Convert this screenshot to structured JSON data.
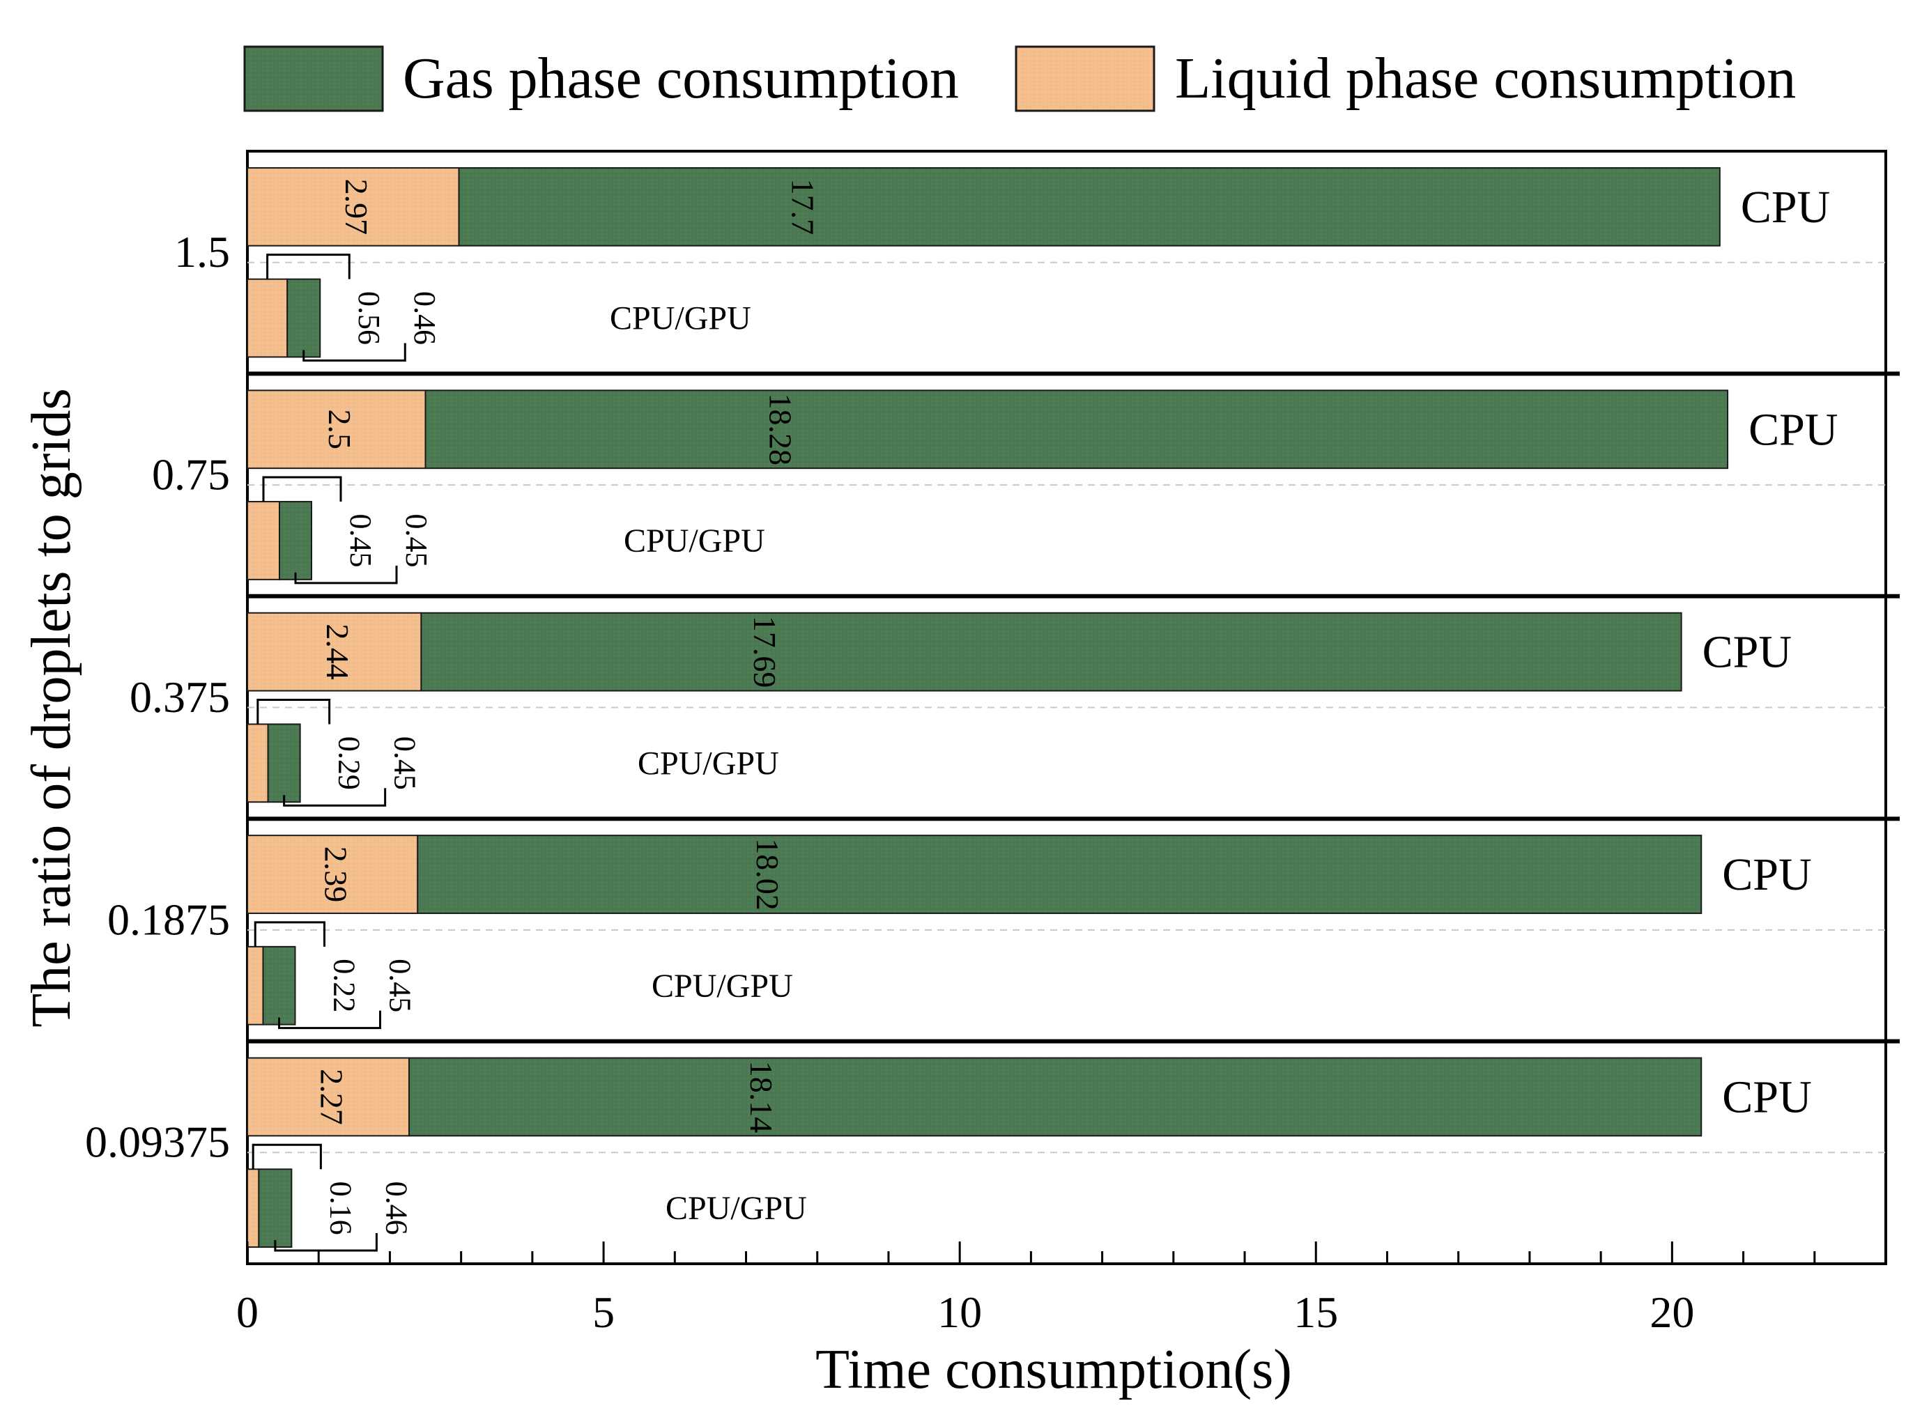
{
  "chart_data": {
    "type": "bar",
    "orientation": "horizontal",
    "stacked": true,
    "title": "",
    "xlabel": "Time consumption(s)",
    "ylabel": "The ratio of droplets to grids",
    "xlim": [
      0,
      23
    ],
    "x_ticks": [
      "0",
      "5",
      "10",
      "15",
      "20"
    ],
    "legend": {
      "position": "top",
      "entries": [
        "Gas phase consumption",
        "Liquid phase consumption"
      ]
    },
    "colors": {
      "gas": "#4e7d55",
      "liquid": "#f5c190",
      "edge": "#1a1a1a"
    },
    "groups": [
      {
        "label": "1.5",
        "bars": [
          {
            "label": "CPU",
            "liquid": 2.97,
            "gas": 17.7,
            "liquid_text": "2.97",
            "gas_text": "17.7"
          },
          {
            "label": "CPU/GPU",
            "liquid": 0.56,
            "gas": 0.46,
            "liquid_text": "0.56",
            "gas_text": "0.46"
          }
        ]
      },
      {
        "label": "0.75",
        "bars": [
          {
            "label": "CPU",
            "liquid": 2.5,
            "gas": 18.28,
            "liquid_text": "2.5",
            "gas_text": "18.28"
          },
          {
            "label": "CPU/GPU",
            "liquid": 0.45,
            "gas": 0.45,
            "liquid_text": "0.45",
            "gas_text": "0.45"
          }
        ]
      },
      {
        "label": "0.375",
        "bars": [
          {
            "label": "CPU",
            "liquid": 2.44,
            "gas": 17.69,
            "liquid_text": "2.44",
            "gas_text": "17.69"
          },
          {
            "label": "CPU/GPU",
            "liquid": 0.29,
            "gas": 0.45,
            "liquid_text": "0.29",
            "gas_text": "0.45"
          }
        ]
      },
      {
        "label": "0.1875",
        "bars": [
          {
            "label": "CPU",
            "liquid": 2.39,
            "gas": 18.02,
            "liquid_text": "2.39",
            "gas_text": "18.02"
          },
          {
            "label": "CPU/GPU",
            "liquid": 0.22,
            "gas": 0.45,
            "liquid_text": "0.22",
            "gas_text": "0.45"
          }
        ]
      },
      {
        "label": "0.09375",
        "bars": [
          {
            "label": "CPU",
            "liquid": 2.27,
            "gas": 18.14,
            "liquid_text": "2.27",
            "gas_text": "18.14"
          },
          {
            "label": "CPU/GPU",
            "liquid": 0.16,
            "gas": 0.46,
            "liquid_text": "0.16",
            "gas_text": "0.46"
          }
        ]
      }
    ]
  }
}
